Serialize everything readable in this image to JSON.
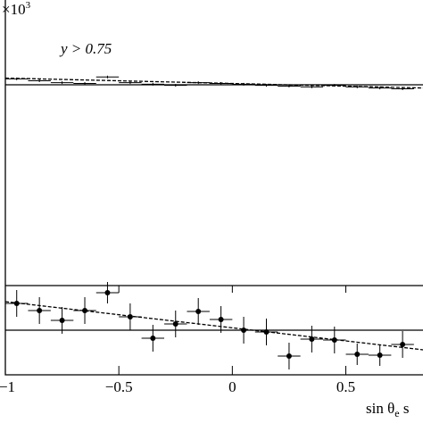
{
  "chart_data": [
    {
      "type": "errorbar",
      "multiplier": "×10",
      "multiplier_exp": "3",
      "annotation": "y > 0.75",
      "x": [
        -0.95,
        -0.85,
        -0.75,
        -0.65,
        -0.55,
        -0.45,
        -0.35,
        -0.25,
        -0.15,
        -0.05,
        0.05,
        0.15,
        0.25,
        0.35,
        0.45,
        0.55,
        0.65,
        0.75
      ],
      "values": [
        7.72,
        7.65,
        7.58,
        7.55,
        7.79,
        7.58,
        7.52,
        7.48,
        7.58,
        7.55,
        7.52,
        7.48,
        7.45,
        7.42,
        7.48,
        7.42,
        7.38,
        7.35
      ],
      "errors": [
        0.05,
        0.05,
        0.05,
        0.05,
        0.05,
        0.05,
        0.05,
        0.05,
        0.05,
        0.05,
        0.05,
        0.05,
        0.05,
        0.05,
        0.05,
        0.05,
        0.05,
        0.05
      ],
      "xerr": 0.05,
      "fit_solid": [
        7.5,
        7.5
      ],
      "fit_dashed": [
        7.75,
        7.38
      ],
      "xlim": [
        -1,
        0.84
      ],
      "ylim": [
        0,
        10
      ]
    },
    {
      "type": "errorbar",
      "x": [
        -0.95,
        -0.85,
        -0.75,
        -0.65,
        -0.55,
        -0.45,
        -0.35,
        -0.25,
        -0.15,
        -0.05,
        0.05,
        0.15,
        0.25,
        0.35,
        0.45,
        0.55,
        0.65,
        0.75
      ],
      "values": [
        0.3,
        0.22,
        0.11,
        0.22,
        0.42,
        0.15,
        -0.09,
        0.07,
        0.21,
        0.12,
        0.0,
        -0.02,
        -0.29,
        -0.1,
        -0.11,
        -0.27,
        -0.28,
        -0.16
      ],
      "errors": [
        0.15,
        0.15,
        0.15,
        0.15,
        0.12,
        0.15,
        0.15,
        0.15,
        0.15,
        0.15,
        0.15,
        0.15,
        0.15,
        0.15,
        0.15,
        0.12,
        0.12,
        0.15
      ],
      "xerr": 0.05,
      "fit_solid": [
        0,
        0
      ],
      "fit_dashed": [
        0.32,
        -0.22
      ],
      "xlim": [
        -1,
        0.84
      ],
      "ylim": [
        -0.5,
        0.5
      ],
      "xticks": [
        {
          "value": -1,
          "label": "−1"
        },
        {
          "value": -0.5,
          "label": "−0.5"
        },
        0,
        0.5
      ],
      "xlabel": "sin θ",
      "xlabel_sub": "e",
      "xlabel_rest": " s"
    }
  ]
}
